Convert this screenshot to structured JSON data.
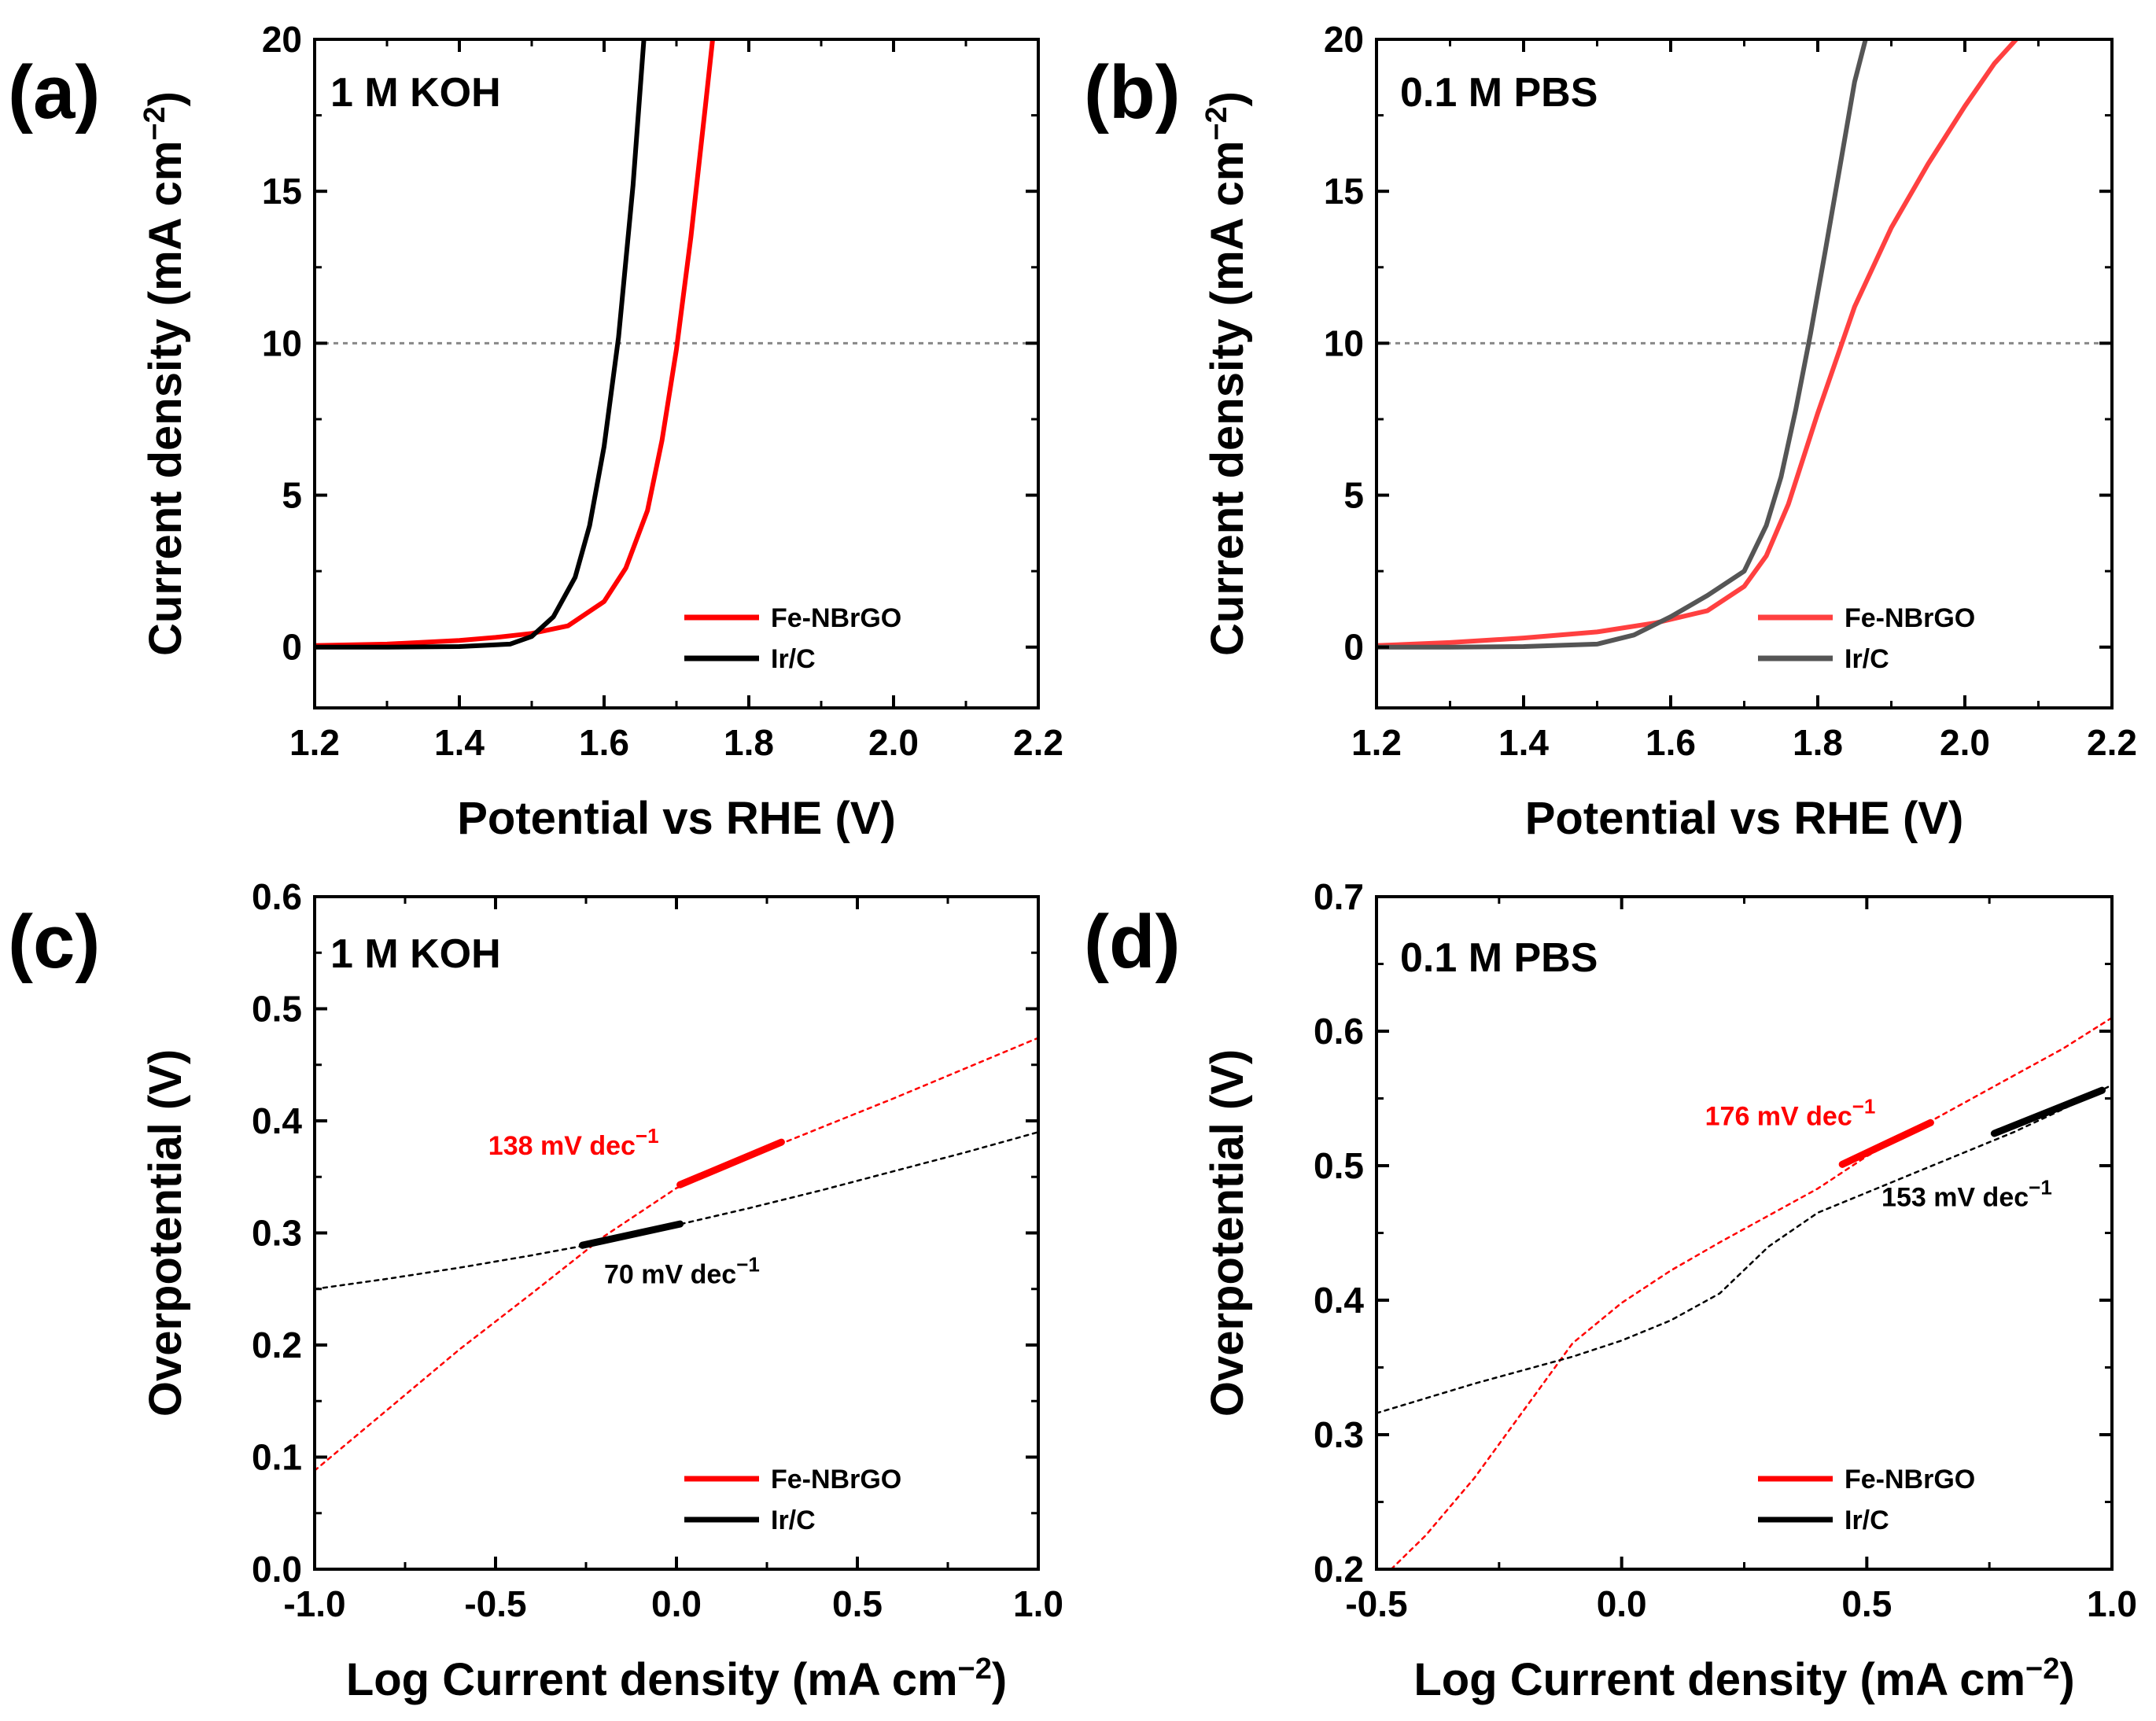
{
  "chart_data": [
    {
      "type": "line",
      "panel_label": "(a)",
      "condition": "1 M KOH",
      "xlabel": "Potential vs RHE (V)",
      "ylabel": "Current density (mA cm",
      "ylabel_sup": "−2",
      "ylabel_close": ")",
      "xlim": [
        1.2,
        2.2
      ],
      "ylim": [
        -2,
        20
      ],
      "xticks": [
        1.2,
        1.4,
        1.6,
        1.8,
        2.0,
        2.2
      ],
      "xtick_labels": [
        "1.2",
        "1.4",
        "1.6",
        "1.8",
        "2.0",
        "2.2"
      ],
      "yticks": [
        0,
        5,
        10,
        15,
        20
      ],
      "ytick_labels": [
        "0",
        "5",
        "10",
        "15",
        "20"
      ],
      "reference_line_y": 10,
      "legend": {
        "position": "bottom-right",
        "entries": [
          "Fe-NBrGO",
          "Ir/C"
        ]
      },
      "series": [
        {
          "name": "Fe-NBrGO",
          "color": "#ff0000",
          "style": "solid",
          "x": [
            1.2,
            1.3,
            1.4,
            1.45,
            1.5,
            1.55,
            1.6,
            1.63,
            1.66,
            1.68,
            1.7,
            1.72,
            1.74,
            1.75
          ],
          "y": [
            0.05,
            0.1,
            0.22,
            0.32,
            0.45,
            0.7,
            1.5,
            2.6,
            4.5,
            6.8,
            9.8,
            13.5,
            17.8,
            20
          ]
        },
        {
          "name": "Ir/C",
          "color": "#000000",
          "style": "solid",
          "x": [
            1.2,
            1.3,
            1.4,
            1.47,
            1.5,
            1.53,
            1.56,
            1.58,
            1.6,
            1.62,
            1.64,
            1.655
          ],
          "y": [
            0.0,
            0.0,
            0.02,
            0.1,
            0.35,
            1.0,
            2.3,
            4.0,
            6.6,
            10.2,
            15.2,
            20
          ]
        }
      ]
    },
    {
      "type": "line",
      "panel_label": "(b)",
      "condition": "0.1 M PBS",
      "xlabel": "Potential vs RHE (V)",
      "ylabel": "Current density (mA cm",
      "ylabel_sup": "−2",
      "ylabel_close": ")",
      "xlim": [
        1.2,
        2.2
      ],
      "ylim": [
        -2,
        20
      ],
      "xticks": [
        1.2,
        1.4,
        1.6,
        1.8,
        2.0,
        2.2
      ],
      "xtick_labels": [
        "1.2",
        "1.4",
        "1.6",
        "1.8",
        "2.0",
        "2.2"
      ],
      "yticks": [
        0,
        5,
        10,
        15,
        20
      ],
      "ytick_labels": [
        "0",
        "5",
        "10",
        "15",
        "20"
      ],
      "reference_line_y": 10,
      "legend": {
        "position": "bottom-right",
        "entries": [
          "Fe-NBrGO",
          "Ir/C"
        ]
      },
      "series": [
        {
          "name": "Fe-NBrGO",
          "color": "#ff4040",
          "style": "solid",
          "x": [
            1.2,
            1.3,
            1.4,
            1.5,
            1.58,
            1.65,
            1.7,
            1.73,
            1.76,
            1.8,
            1.85,
            1.9,
            1.95,
            2.0,
            2.04,
            2.07
          ],
          "y": [
            0.05,
            0.15,
            0.3,
            0.5,
            0.8,
            1.2,
            2.0,
            3.0,
            4.7,
            7.7,
            11.2,
            13.8,
            15.9,
            17.8,
            19.2,
            20
          ]
        },
        {
          "name": "Ir/C",
          "color": "#555555",
          "style": "solid",
          "x": [
            1.2,
            1.3,
            1.4,
            1.5,
            1.55,
            1.6,
            1.65,
            1.7,
            1.73,
            1.75,
            1.77,
            1.79,
            1.81,
            1.83,
            1.85,
            1.865
          ],
          "y": [
            0.0,
            0.0,
            0.02,
            0.1,
            0.4,
            1.0,
            1.7,
            2.5,
            4.0,
            5.6,
            7.8,
            10.3,
            13.0,
            15.8,
            18.6,
            20
          ]
        }
      ]
    },
    {
      "type": "line",
      "panel_label": "(c)",
      "condition": "1 M KOH",
      "xlabel": "Log Current density (mA cm",
      "xlabel_sup": "−2",
      "xlabel_close": ")",
      "ylabel": "Overpotential (V)",
      "xlim": [
        -1.0,
        1.0
      ],
      "ylim": [
        0.0,
        0.6
      ],
      "xticks": [
        -1.0,
        -0.5,
        0.0,
        0.5,
        1.0
      ],
      "xtick_labels": [
        "-1.0",
        "-0.5",
        "0.0",
        "0.5",
        "1.0"
      ],
      "yticks": [
        0.0,
        0.1,
        0.2,
        0.3,
        0.4,
        0.5,
        0.6
      ],
      "ytick_labels": [
        "0.0",
        "0.1",
        "0.2",
        "0.3",
        "0.4",
        "0.5",
        "0.6"
      ],
      "legend": {
        "position": "bottom-right",
        "entries": [
          "Fe-NBrGO",
          "Ir/C"
        ]
      },
      "annotations": [
        {
          "text": "138 mV dec",
          "sup": "−1",
          "color": "#ff0000",
          "x": -0.52,
          "y": 0.37
        },
        {
          "text": "70 mV dec",
          "sup": "−1",
          "color": "#000000",
          "x": -0.2,
          "y": 0.255
        }
      ],
      "series": [
        {
          "name": "Fe-NBrGO (Tafel curve)",
          "color": "#ff0000",
          "style": "dotted",
          "x": [
            -1.0,
            -0.8,
            -0.6,
            -0.4,
            -0.2,
            0.0,
            0.2,
            0.4,
            0.6,
            0.8,
            1.0
          ],
          "y": [
            0.088,
            0.142,
            0.196,
            0.246,
            0.297,
            0.34,
            0.368,
            0.394,
            0.42,
            0.447,
            0.474
          ]
        },
        {
          "name": "Fe-NBrGO (Tafel fit)",
          "color": "#ff0000",
          "style": "fit",
          "x": [
            0.01,
            0.29
          ],
          "y": [
            0.343,
            0.381
          ]
        },
        {
          "name": "Ir/C (Tafel curve)",
          "color": "#000000",
          "style": "dotted",
          "x": [
            -1.0,
            -0.8,
            -0.6,
            -0.4,
            -0.25,
            0.0,
            0.2,
            0.4,
            0.6,
            0.8,
            1.0
          ],
          "y": [
            0.25,
            0.259,
            0.269,
            0.28,
            0.289,
            0.307,
            0.322,
            0.338,
            0.355,
            0.372,
            0.39
          ]
        },
        {
          "name": "Ir/C (Tafel fit)",
          "color": "#000000",
          "style": "fit",
          "x": [
            -0.26,
            0.01
          ],
          "y": [
            0.289,
            0.308
          ]
        }
      ]
    },
    {
      "type": "line",
      "panel_label": "(d)",
      "condition": "0.1 M PBS",
      "xlabel": "Log Current density (mA cm",
      "xlabel_sup": "−2",
      "xlabel_close": ")",
      "ylabel": "Overpotential (V)",
      "xlim": [
        -0.5,
        1.0
      ],
      "ylim": [
        0.2,
        0.7
      ],
      "xticks": [
        -0.5,
        0.0,
        0.5,
        1.0
      ],
      "xtick_labels": [
        "-0.5",
        "0.0",
        "0.5",
        "1.0"
      ],
      "yticks": [
        0.2,
        0.3,
        0.4,
        0.5,
        0.6,
        0.7
      ],
      "ytick_labels": [
        "0.2",
        "0.3",
        "0.4",
        "0.5",
        "0.6",
        "0.7"
      ],
      "legend": {
        "position": "bottom-right",
        "entries": [
          "Fe-NBrGO",
          "Ir/C"
        ]
      },
      "annotations": [
        {
          "text": "176 mV dec",
          "sup": "−1",
          "color": "#ff0000",
          "x": 0.17,
          "y": 0.53
        },
        {
          "text": "153 mV dec",
          "sup": "−1",
          "color": "#000000",
          "x": 0.53,
          "y": 0.47
        }
      ],
      "series": [
        {
          "name": "Fe-NBrGO (Tafel curve)",
          "color": "#ff0000",
          "style": "dotted",
          "x": [
            -0.47,
            -0.4,
            -0.3,
            -0.2,
            -0.1,
            0.0,
            0.1,
            0.2,
            0.3,
            0.4,
            0.5,
            0.6,
            0.7,
            0.8,
            0.9,
            1.0
          ],
          "y": [
            0.2,
            0.225,
            0.268,
            0.318,
            0.368,
            0.398,
            0.422,
            0.443,
            0.463,
            0.483,
            0.507,
            0.527,
            0.547,
            0.567,
            0.587,
            0.61
          ]
        },
        {
          "name": "Fe-NBrGO (Tafel fit)",
          "color": "#ff0000",
          "style": "fit",
          "x": [
            0.45,
            0.63
          ],
          "y": [
            0.501,
            0.532
          ]
        },
        {
          "name": "Ir/C (Tafel curve)",
          "color": "#000000",
          "style": "dotted",
          "x": [
            -0.5,
            -0.4,
            -0.3,
            -0.2,
            -0.1,
            0.0,
            0.1,
            0.2,
            0.3,
            0.4,
            0.5,
            0.6,
            0.7,
            0.8,
            0.9,
            1.0
          ],
          "y": [
            0.316,
            0.327,
            0.338,
            0.348,
            0.358,
            0.37,
            0.385,
            0.405,
            0.44,
            0.465,
            0.48,
            0.495,
            0.51,
            0.525,
            0.542,
            0.56
          ]
        },
        {
          "name": "Ir/C (Tafel fit)",
          "color": "#000000",
          "style": "fit",
          "x": [
            0.76,
            0.98
          ],
          "y": [
            0.524,
            0.556
          ]
        }
      ]
    }
  ]
}
